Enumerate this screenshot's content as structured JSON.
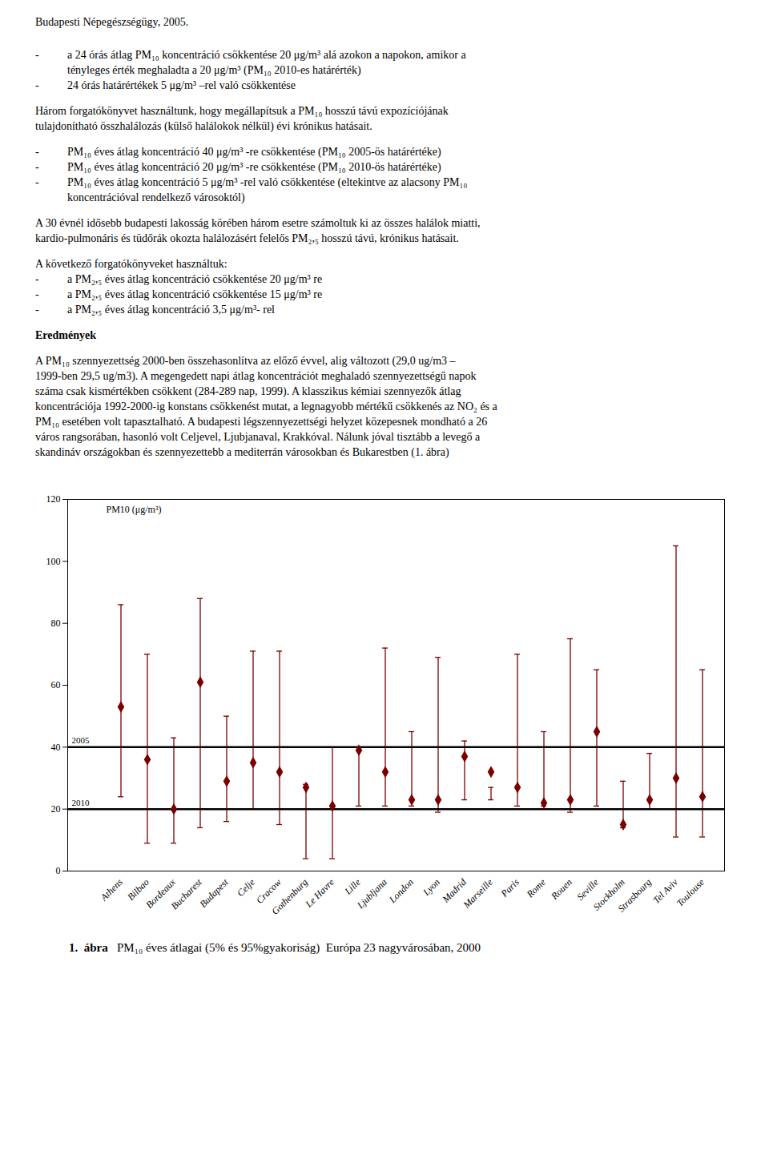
{
  "page": {
    "header": "Budapesti Népegészségügy, 2005.",
    "blocks": [
      {
        "bullet": "-",
        "items": [
          [
            "a 24 órás átlag PM₁₀ koncentráció csökkentése 20 μg/m³ alá azokon a napokon, amikor a",
            "tényleges érték meghaladta a 20 μg/m³ (PM₁₀ 2010-es határérték)"
          ],
          [
            "24 órás határértékek 5 μg/m³ –rel való csökkentése"
          ]
        ]
      },
      {
        "lines": [
          "Három forgatókönyvet használtunk, hogy megállapítsuk a PM₁₀ hosszú távú expozíciójának",
          "tulajdonítható összhalálozás (külső halálokok nélkül) évi krónikus hatásait."
        ]
      },
      {
        "bullet": "-",
        "items": [
          [
            "PM₁₀ éves átlag koncentráció 40 μg/m³ -re csökkentése (PM₁₀ 2005-ös határértéke)"
          ],
          [
            "PM₁₀ éves átlag koncentráció 20 μg/m³ -re csökkentése (PM₁₀ 2010-ös határértéke)"
          ],
          [
            "PM₁₀ éves átlag koncentráció 5 μg/m³ -rel való csökkentése (eltekintve az alacsony PM₁₀",
            "koncentrációval rendelkező városoktól)"
          ]
        ]
      },
      {
        "lines": [
          "A 30 évnél idősebb budapesti lakosság körében három esetre számoltuk ki az összes halálok miatti,",
          "kardio-pulmonáris és tüdőrák okozta halálozásért felelős PM₂,₅ hosszú távú, krónikus hatásait."
        ]
      },
      {
        "lines": [
          "A következő forgatókönyveket használtuk:"
        ],
        "bullet": "-",
        "items": [
          [
            "a PM₂,₅ éves átlag koncentráció csökkentése 20 μg/m³ re"
          ],
          [
            "a PM₂,₅ éves átlag koncentráció csökkentése 15 μg/m³ re"
          ],
          [
            "a PM₂,₅ éves átlag koncentráció 3,5 μg/m³- rel"
          ]
        ]
      },
      {
        "heading": "Eredmények"
      },
      {
        "lines": [
          "A PM₁₀ szennyezettség 2000-ben összehasonlítva az előző évvel, alig változott (29,0 ug/m3 –",
          "1999-ben 29,5 ug/m3). A megengedett napi átlag koncentrációt meghaladó szennyezettségű napok",
          "száma csak kismértékben csökkent (284-289 nap, 1999). A klasszikus kémiai szennyezők átlag",
          "koncentrációja 1992-2000-ig konstans csökkenést mutat, a legnagyobb mértékű csökkenés az NO₂ és a",
          "PM₁₀ esetében volt tapasztalható. A budapesti légszennyezettségi helyzet közepesnek mondható a 26",
          "város rangsorában, hasonló volt Celjevel, Ljubjanaval, Krakkóval. Nálunk jóval tisztább a levegő a",
          "skandináv országokban és szennyezettebb a mediterrán városokban és Bukarestben (1. ábra)"
        ]
      }
    ]
  },
  "chart_data": {
    "type": "errorbar",
    "categories": [
      "Athens",
      "Bilbao",
      "Bordeaux",
      "Bucharest",
      "Budapest",
      "Celje",
      "Cracow",
      "Gothenburg",
      "Le Havre",
      "Lille",
      "Ljubljana",
      "London",
      "Lyon",
      "Madrid",
      "Marseille",
      "Paris",
      "Rome",
      "Rouen",
      "Seville",
      "Stockholm",
      "Strasbourg",
      "Tel Aviv",
      "Toulouse"
    ],
    "values": [
      53,
      36,
      20,
      61,
      29,
      35,
      32,
      27,
      21,
      39,
      32,
      23,
      23,
      37,
      32,
      27,
      22,
      23,
      45,
      15,
      23,
      30,
      24
    ],
    "p5": [
      24,
      9,
      9,
      14,
      16,
      20,
      15,
      4,
      4,
      21,
      21,
      21,
      19,
      23,
      23,
      21,
      21,
      19,
      21,
      14,
      20,
      11,
      11
    ],
    "p95": [
      86,
      70,
      43,
      88,
      50,
      71,
      71,
      28,
      40,
      39,
      72,
      45,
      69,
      42,
      27,
      70,
      45,
      75,
      65,
      29,
      38,
      105,
      65
    ],
    "color": "#7a0000",
    "marker": "diamond",
    "ref_lines": [
      {
        "value": 40,
        "label": "2005",
        "color": "#000000"
      },
      {
        "value": 20,
        "label": "2010",
        "color": "#000000"
      }
    ],
    "ylabel": "PM10 (μg/m³)",
    "ylim": [
      0,
      120
    ],
    "yticks": [
      0,
      20,
      40,
      60,
      80,
      100,
      120
    ],
    "grid": false,
    "caption_number": "1.",
    "caption_word": "ábra",
    "caption_text": "PM₁₀ éves átlagai (5% és 95%gyakoriság)  Európa 23 nagyvárosában, 2000"
  }
}
